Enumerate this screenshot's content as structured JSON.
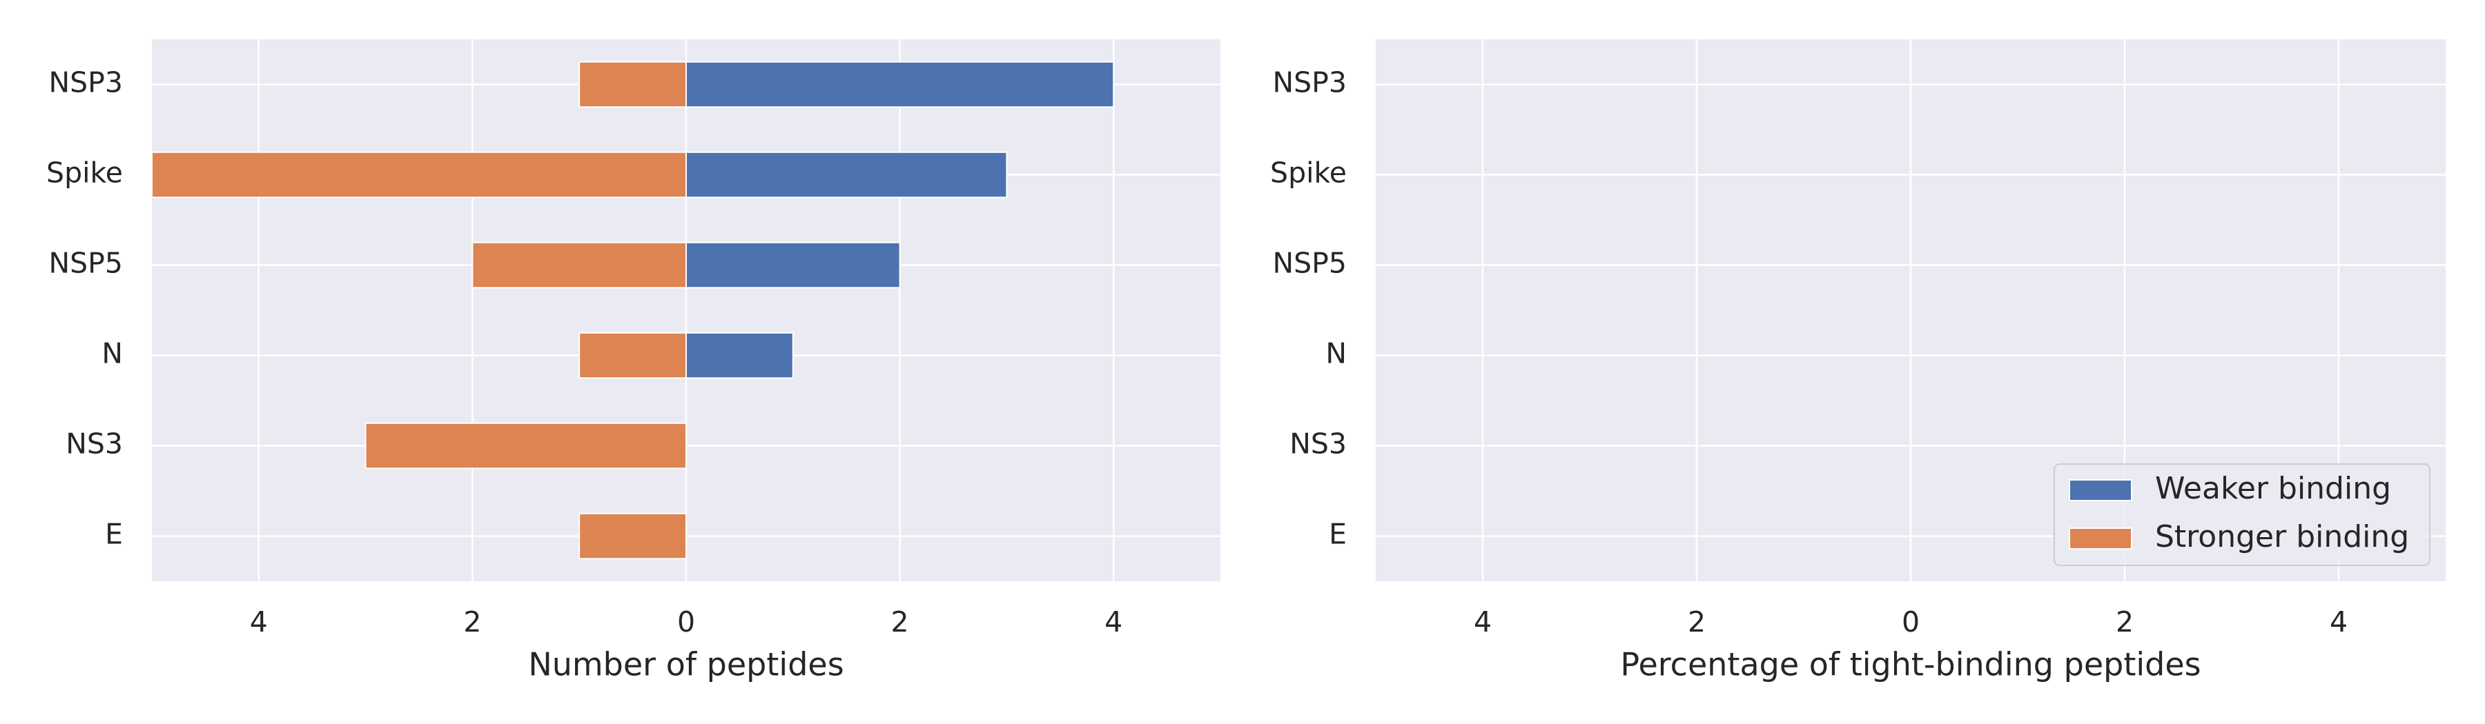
{
  "chart_data": [
    {
      "type": "bar",
      "orientation": "horizontal",
      "categories": [
        "NSP3",
        "Spike",
        "NSP5",
        "N",
        "NS3",
        "E"
      ],
      "series": [
        {
          "name": "Weaker binding",
          "color": "#4c72b0",
          "values": [
            4,
            3,
            2,
            1,
            null,
            null
          ]
        },
        {
          "name": "Stronger binding",
          "color": "#dd8452",
          "values": [
            -1,
            -5,
            -2,
            -1,
            -3,
            -1
          ]
        }
      ],
      "xlabel": "Number of peptides",
      "xlim": [
        -5,
        5
      ],
      "xticks": [
        {
          "value": -4,
          "label": "4"
        },
        {
          "value": -2,
          "label": "2"
        },
        0,
        2,
        4
      ],
      "grid": true
    },
    {
      "type": "bar",
      "orientation": "horizontal",
      "categories": [
        "NSP3",
        "Spike",
        "NSP5",
        "N",
        "NS3",
        "E"
      ],
      "series": [
        {
          "name": "Weaker binding",
          "color": "#4c72b0"
        },
        {
          "name": "Stronger binding",
          "color": "#dd8452"
        }
      ],
      "xlabel": "Percentage of tight-binding peptides",
      "xlim": [
        -5,
        5
      ],
      "xticks": [
        {
          "value": -4,
          "label": "4"
        },
        {
          "value": -2,
          "label": "2"
        },
        0,
        2,
        4
      ],
      "grid": true,
      "legend": "lower right"
    }
  ]
}
